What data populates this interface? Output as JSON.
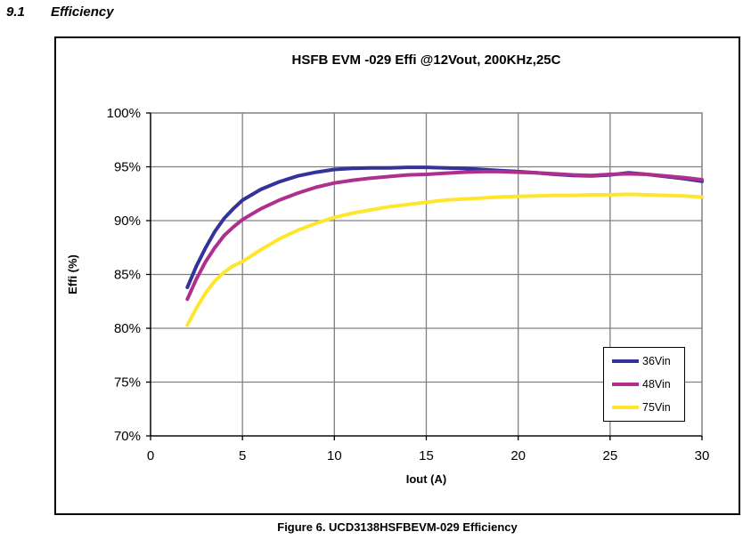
{
  "section": {
    "number": "9.1",
    "title": "Efficiency"
  },
  "caption": "Figure 6. UCD3138HSFBEVM-029 Efficiency",
  "chart_data": {
    "type": "line",
    "title": "HSFB EVM -029 Effi @12Vout, 200KHz,25C",
    "xlabel": "Iout (A)",
    "ylabel": "Effi (%)",
    "xlim": [
      0,
      30
    ],
    "ylim": [
      70,
      100
    ],
    "x_ticks": [
      0,
      5,
      10,
      15,
      20,
      25,
      30
    ],
    "x_tick_labels": [
      "0",
      "5",
      "10",
      "15",
      "20",
      "25",
      "30"
    ],
    "y_ticks": [
      100,
      95,
      90,
      85,
      80,
      75,
      70
    ],
    "y_tick_labels": [
      "100%",
      "95%",
      "90%",
      "85%",
      "80%",
      "75%",
      "70%"
    ],
    "grid": true,
    "legend_position": "bottom-right",
    "grid_color": "#808080",
    "axis_color": "#000000",
    "x": [
      2,
      2.5,
      3,
      3.5,
      4,
      4.5,
      5,
      6,
      7,
      8,
      9,
      10,
      11,
      12,
      13,
      14,
      15,
      16,
      17,
      18,
      19,
      20,
      21,
      22,
      23,
      24,
      25,
      26,
      27,
      28,
      29,
      30
    ],
    "series": [
      {
        "name": "36Vin",
        "color": "#33339B",
        "values": [
          83.8,
          85.8,
          87.5,
          89.0,
          90.2,
          91.1,
          91.9,
          92.9,
          93.6,
          94.15,
          94.5,
          94.75,
          94.85,
          94.9,
          94.9,
          94.95,
          94.95,
          94.9,
          94.85,
          94.75,
          94.65,
          94.55,
          94.45,
          94.3,
          94.2,
          94.15,
          94.25,
          94.45,
          94.3,
          94.1,
          93.9,
          93.65
        ]
      },
      {
        "name": "48Vin",
        "color": "#B02E8E",
        "values": [
          82.7,
          84.6,
          86.2,
          87.5,
          88.6,
          89.4,
          90.1,
          91.1,
          91.9,
          92.55,
          93.1,
          93.5,
          93.75,
          93.95,
          94.1,
          94.25,
          94.3,
          94.4,
          94.5,
          94.55,
          94.55,
          94.5,
          94.45,
          94.35,
          94.25,
          94.2,
          94.3,
          94.35,
          94.3,
          94.15,
          94.0,
          93.8
        ]
      },
      {
        "name": "75Vin",
        "color": "#FFE52B",
        "values": [
          80.3,
          81.9,
          83.3,
          84.4,
          85.2,
          85.8,
          86.2,
          87.3,
          88.3,
          89.1,
          89.75,
          90.3,
          90.7,
          91.0,
          91.3,
          91.5,
          91.7,
          91.9,
          92.0,
          92.1,
          92.2,
          92.25,
          92.3,
          92.35,
          92.35,
          92.4,
          92.4,
          92.45,
          92.4,
          92.35,
          92.3,
          92.2
        ]
      }
    ]
  }
}
